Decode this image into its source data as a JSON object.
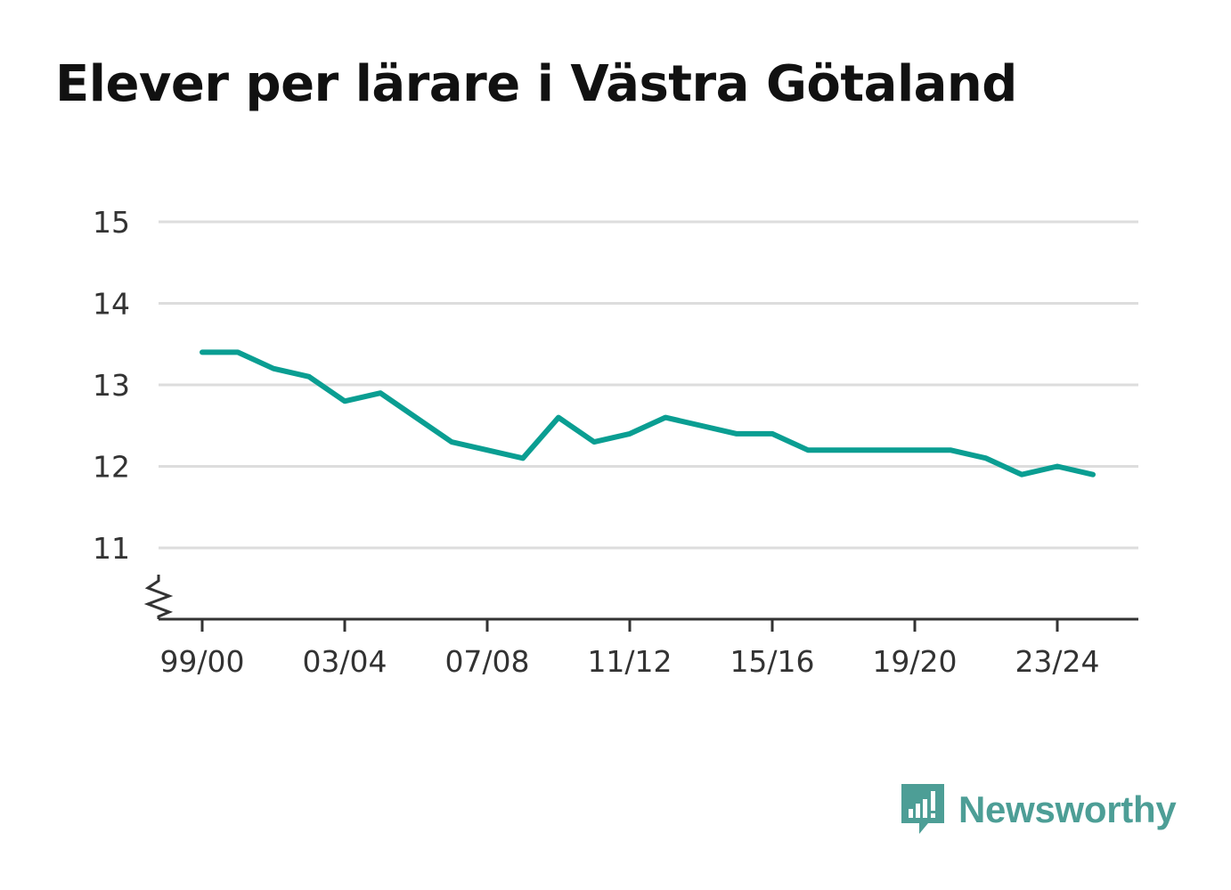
{
  "chart_data": {
    "type": "line",
    "title": "Elever per lärare i Västra Götaland",
    "xlabel": "",
    "ylabel": "",
    "x_ticks": [
      "99/00",
      "03/04",
      "07/08",
      "11/12",
      "15/16",
      "19/20",
      "23/24"
    ],
    "y_ticks": [
      "15",
      "14",
      "13",
      "12",
      "11"
    ],
    "ylim": [
      10.1,
      15
    ],
    "y_axis_break": true,
    "grid": "horizontal",
    "line_color": "#0a9e92",
    "series": [
      {
        "x": [
          "99/00",
          "00/01",
          "01/02",
          "02/03",
          "03/04",
          "04/05",
          "05/06",
          "06/07",
          "07/08",
          "08/09",
          "09/10",
          "10/11",
          "11/12",
          "12/13",
          "13/14",
          "14/15",
          "15/16",
          "16/17",
          "17/18",
          "18/19",
          "19/20",
          "20/21",
          "21/22",
          "22/23",
          "23/24",
          "24/25"
        ],
        "values": [
          13.4,
          13.4,
          13.2,
          13.1,
          12.8,
          12.9,
          12.6,
          12.3,
          12.2,
          12.1,
          12.6,
          12.3,
          12.4,
          12.6,
          12.5,
          12.4,
          12.4,
          12.2,
          12.2,
          12.2,
          12.2,
          12.2,
          12.1,
          11.9,
          12.0,
          11.9
        ]
      }
    ]
  },
  "brand": {
    "name": "Newsworthy",
    "icon": "newsworthy-logo-icon",
    "color": "#4d9e96"
  }
}
